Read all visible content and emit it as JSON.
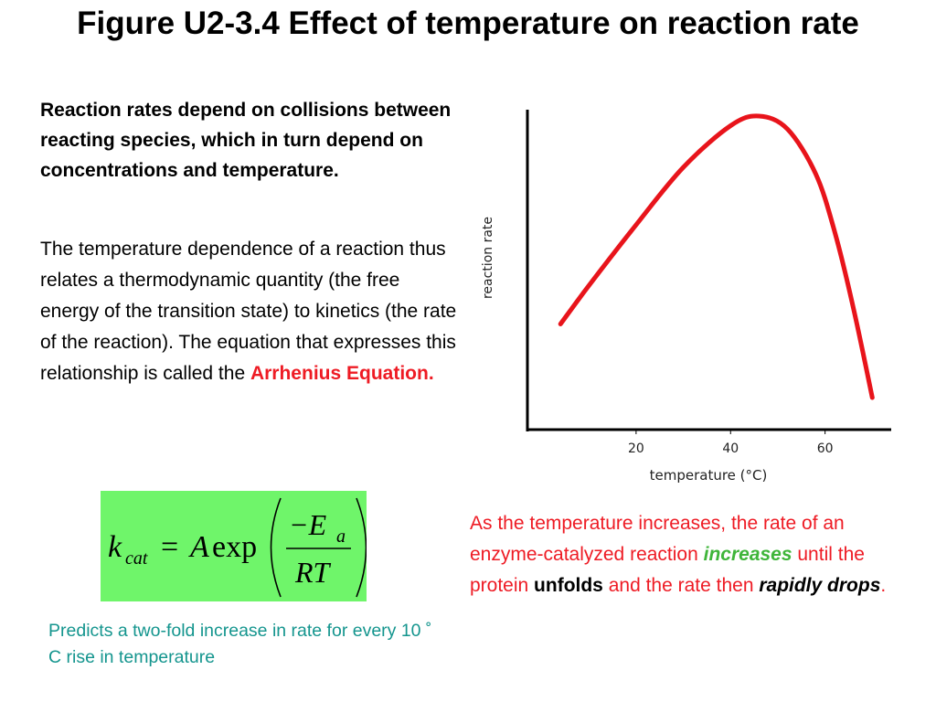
{
  "title": "Figure U2-3.4 Effect of temperature on reaction rate",
  "left_text": {
    "para1": "Reaction rates depend on collisions between reacting species, which in turn depend on concentrations and temperature.",
    "para2_main": "The temperature dependence of a reaction thus relates a thermodynamic quantity (the free energy of the transition state) to kinetics (the rate of the reaction). The equation that expresses this relationship is called the ",
    "para2_highlight": "Arrhenius Equation",
    "para2_end": "."
  },
  "equation": {
    "k": "k",
    "k_sub": "cat",
    "equals": "=",
    "A": "A",
    "exp": "exp",
    "numerator": "−E",
    "numerator_sub": "a",
    "denominator": "RT"
  },
  "note": "Predicts a two-fold increase in rate for every 10 ˚ C rise in temperature",
  "chart_data": {
    "type": "line",
    "xlabel": "temperature (°C)",
    "ylabel": "reaction rate",
    "x_ticks": [
      "20",
      "40",
      "60"
    ],
    "x": [
      4,
      10,
      20,
      30,
      40,
      46,
      52,
      58,
      62,
      66,
      70
    ],
    "y": [
      0.33,
      0.45,
      0.64,
      0.82,
      0.95,
      0.98,
      0.94,
      0.8,
      0.62,
      0.38,
      0.1
    ],
    "xlim": [
      -3,
      74
    ],
    "ylim": [
      0,
      1
    ],
    "series_color": "#e8141b"
  },
  "caption": {
    "part1": "As the temperature increases, the rate of an enzyme-catalyzed reaction ",
    "increases": "increases",
    "part2": " until the protein ",
    "unfolds": "unfolds",
    "part3": " and the rate then ",
    "drops": "rapidly drops",
    "end": "."
  }
}
